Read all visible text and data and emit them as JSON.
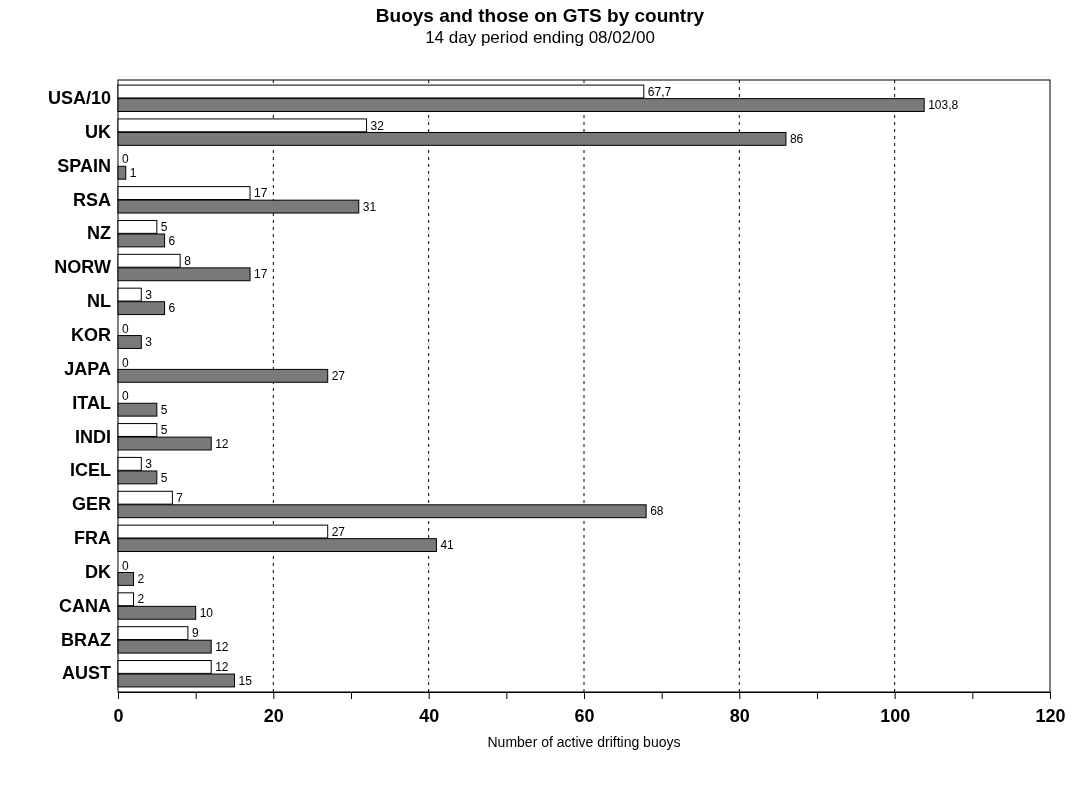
{
  "chart_data": {
    "type": "bar",
    "orientation": "horizontal",
    "title": "Buoys and those on GTS by country",
    "subtitle": "14 day period ending 08/02/00",
    "xlabel": "Number of active drifting buoys",
    "categories": [
      "USA/10",
      "UK",
      "SPAIN",
      "RSA",
      "NZ",
      "NORW",
      "NL",
      "KOR",
      "JAPA",
      "ITAL",
      "INDI",
      "ICEL",
      "GER",
      "FRA",
      "DK",
      "CANA",
      "BRAZ",
      "AUST"
    ],
    "series": [
      {
        "color": "#ffffff",
        "values": [
          67.7,
          32,
          0,
          17,
          5,
          8,
          3,
          0,
          0,
          0,
          5,
          3,
          7,
          27,
          0,
          2,
          9,
          12
        ],
        "value_labels": [
          "67,7",
          "32",
          "0",
          "17",
          "5",
          "8",
          "3",
          "0",
          "0",
          "0",
          "5",
          "3",
          "7",
          "27",
          "0",
          "2",
          "9",
          "12"
        ]
      },
      {
        "color": "#7a7a7a",
        "values": [
          103.8,
          86,
          1,
          31,
          6,
          17,
          6,
          3,
          27,
          5,
          12,
          5,
          68,
          41,
          2,
          10,
          12,
          15
        ],
        "value_labels": [
          "103,8",
          "86",
          "1",
          "31",
          "6",
          "17",
          "6",
          "3",
          "27",
          "5",
          "12",
          "5",
          "68",
          "41",
          "2",
          "10",
          "12",
          "15"
        ]
      }
    ],
    "xlim": [
      0,
      120
    ],
    "xticks": [
      0,
      {
        "value": 10,
        "label": null
      },
      20,
      {
        "value": 30,
        "label": null
      },
      40,
      {
        "value": 50,
        "label": null
      },
      60,
      {
        "value": 70,
        "label": null
      },
      80,
      {
        "value": 90,
        "label": null
      },
      100,
      {
        "value": 110,
        "label": null
      },
      120
    ],
    "grid": "x"
  }
}
